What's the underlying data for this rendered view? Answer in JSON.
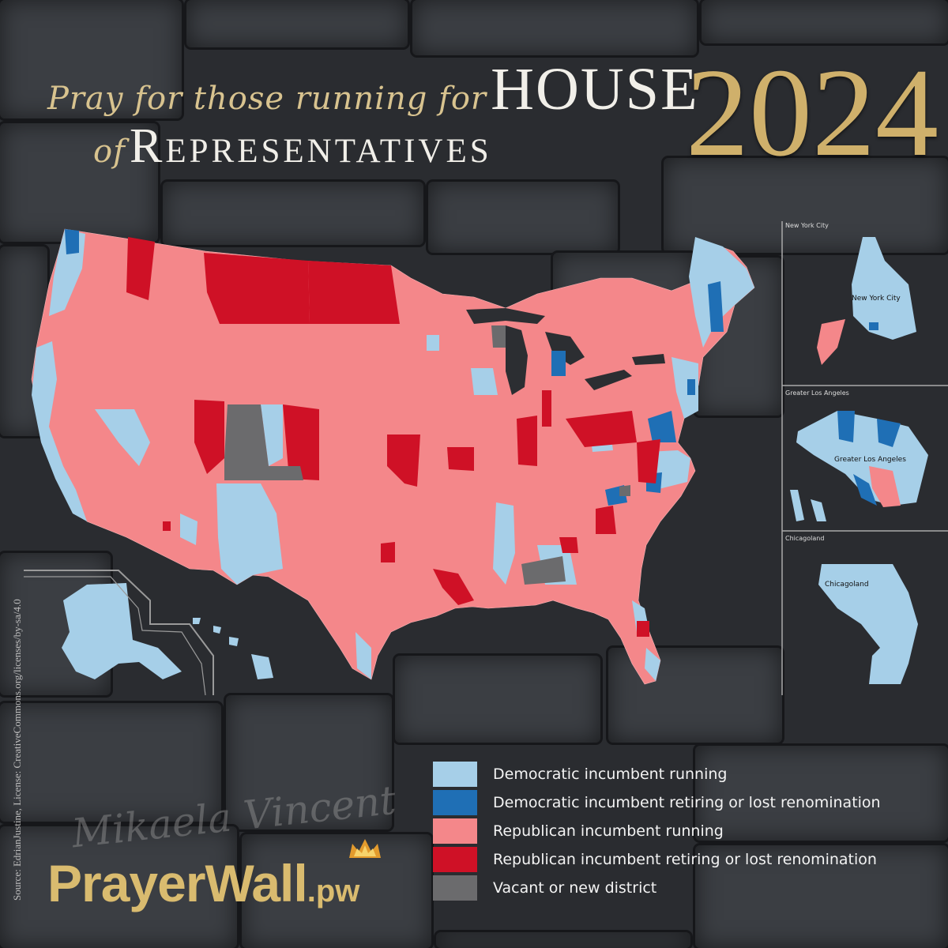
{
  "title": {
    "script_part": "Pray for those running for",
    "house": "HOUSE",
    "of": "of",
    "representatives": "Representatives",
    "year": "2024"
  },
  "insets": {
    "new_york_frame": "New York City",
    "new_york_label": "New York City",
    "los_angeles_frame": "Greater Los Angeles",
    "los_angeles_label": "Greater Los Angeles",
    "chicago_frame": "Chicagoland",
    "chicago_label": "Chicagoland"
  },
  "legend": [
    {
      "label": "Democratic incumbent running",
      "color": "#a6cfe8"
    },
    {
      "label": "Democratic incumbent retiring or lost renomination",
      "color": "#1f6fb5"
    },
    {
      "label": "Republican incumbent running",
      "color": "#f4878a"
    },
    {
      "label": "Republican incumbent retiring or lost renomination",
      "color": "#cf1126"
    },
    {
      "label": "Vacant or new district",
      "color": "#6b6b6d"
    }
  ],
  "source": "Source: EdrianJustine, License: CreativeCommons.org/licenses/by-sa/4.0",
  "signature": "Mikaela Vincent",
  "brand": {
    "main": "PrayerWall",
    "suffix": ".pw"
  }
}
